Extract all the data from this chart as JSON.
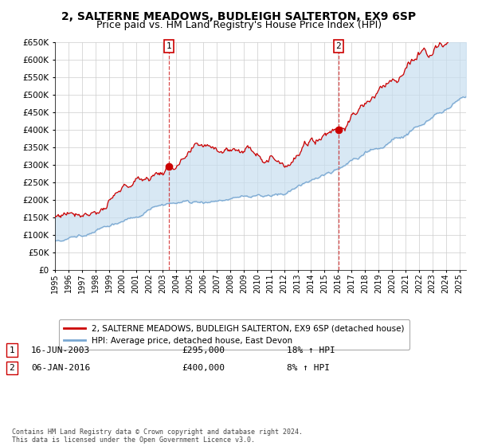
{
  "title": "2, SALTERNE MEADOWS, BUDLEIGH SALTERTON, EX9 6SP",
  "subtitle": "Price paid vs. HM Land Registry's House Price Index (HPI)",
  "ylim": [
    0,
    650000
  ],
  "yticks": [
    0,
    50000,
    100000,
    150000,
    200000,
    250000,
    300000,
    350000,
    400000,
    450000,
    500000,
    550000,
    600000,
    650000
  ],
  "xlim_start": 1995.0,
  "xlim_end": 2025.5,
  "sale1_date": 2003.46,
  "sale1_price": 295000,
  "sale2_date": 2016.04,
  "sale2_price": 400000,
  "red_line_color": "#cc0000",
  "blue_line_color": "#7aa8d2",
  "fill_color": "#c8dff0",
  "background_color": "#ffffff",
  "grid_color": "#cccccc",
  "legend_label_red": "2, SALTERNE MEADOWS, BUDLEIGH SALTERTON, EX9 6SP (detached house)",
  "legend_label_blue": "HPI: Average price, detached house, East Devon",
  "footer": "Contains HM Land Registry data © Crown copyright and database right 2024.\nThis data is licensed under the Open Government Licence v3.0.",
  "title_fontsize": 10,
  "subtitle_fontsize": 9
}
